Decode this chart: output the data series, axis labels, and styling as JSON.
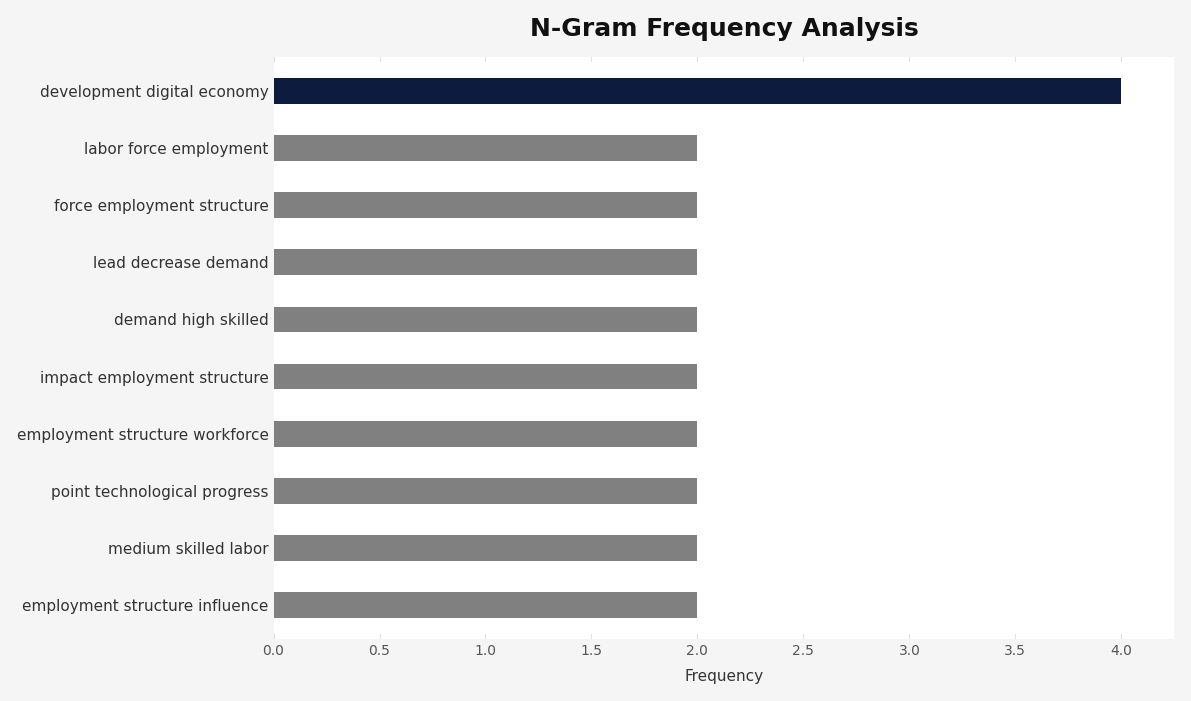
{
  "title": "N-Gram Frequency Analysis",
  "categories": [
    "employment structure influence",
    "medium skilled labor",
    "point technological progress",
    "employment structure workforce",
    "impact employment structure",
    "demand high skilled",
    "lead decrease demand",
    "force employment structure",
    "labor force employment",
    "development digital economy"
  ],
  "values": [
    2,
    2,
    2,
    2,
    2,
    2,
    2,
    2,
    2,
    4
  ],
  "bar_colors": [
    "#808080",
    "#808080",
    "#808080",
    "#808080",
    "#808080",
    "#808080",
    "#808080",
    "#808080",
    "#808080",
    "#0d1b3e"
  ],
  "background_color": "#f5f5f5",
  "bar_area_color": "#ffffff",
  "xlabel": "Frequency",
  "xlim": [
    0,
    4.25
  ],
  "xticks": [
    0.0,
    0.5,
    1.0,
    1.5,
    2.0,
    2.5,
    3.0,
    3.5,
    4.0
  ],
  "xtick_labels": [
    "0.0",
    "0.5",
    "1.0",
    "1.5",
    "2.0",
    "2.5",
    "3.0",
    "3.5",
    "4.0"
  ],
  "title_fontsize": 18,
  "label_fontsize": 11,
  "tick_fontsize": 10,
  "bar_height": 0.45
}
